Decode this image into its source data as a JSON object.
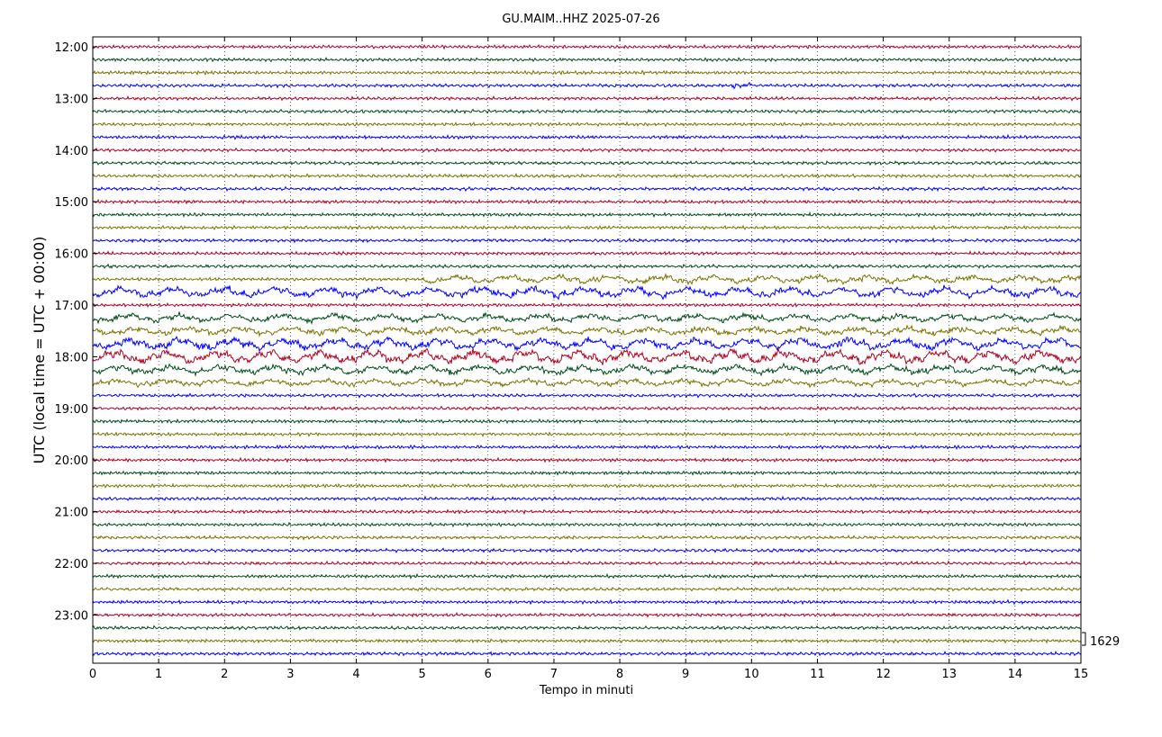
{
  "chart_data": {
    "type": "line",
    "title": "GU.MAIM..HHZ 2025-07-26",
    "xlabel": "Tempo in minuti",
    "ylabel": "UTC (local time = UTC + 00:00)",
    "xlim": [
      0,
      15
    ],
    "x_ticks": [
      "0",
      "1",
      "2",
      "3",
      "4",
      "5",
      "6",
      "7",
      "8",
      "9",
      "10",
      "11",
      "12",
      "13",
      "14",
      "15"
    ],
    "y_tick_labels": [
      "12:00",
      "13:00",
      "14:00",
      "15:00",
      "16:00",
      "17:00",
      "18:00",
      "19:00",
      "20:00",
      "21:00",
      "22:00",
      "23:00"
    ],
    "traces_per_hour": 4,
    "trace_colors": [
      "#b00020",
      "#004d1a",
      "#7a7300",
      "#0000ff"
    ],
    "grid": "vertical-dotted",
    "scale_label": "1629",
    "events": [
      {
        "row": 3,
        "start_min": 9.7,
        "end_min": 10.0,
        "strength": 2.5
      },
      {
        "row": 18,
        "start_min": 5.0,
        "end_min": 15.0,
        "strength": 3.0
      },
      {
        "row": 19,
        "start_min": 0.0,
        "end_min": 15.0,
        "strength": 4.0
      },
      {
        "row": 21,
        "start_min": 0.0,
        "end_min": 15.0,
        "strength": 3.0
      },
      {
        "row": 22,
        "start_min": 0.0,
        "end_min": 15.0,
        "strength": 3.0
      },
      {
        "row": 23,
        "start_min": 0.0,
        "end_min": 15.0,
        "strength": 4.5
      },
      {
        "row": 24,
        "start_min": 0.0,
        "end_min": 15.0,
        "strength": 5.0
      },
      {
        "row": 25,
        "start_min": 0.0,
        "end_min": 15.0,
        "strength": 3.5
      },
      {
        "row": 26,
        "start_min": 0.0,
        "end_min": 15.0,
        "strength": 2.5
      }
    ]
  }
}
